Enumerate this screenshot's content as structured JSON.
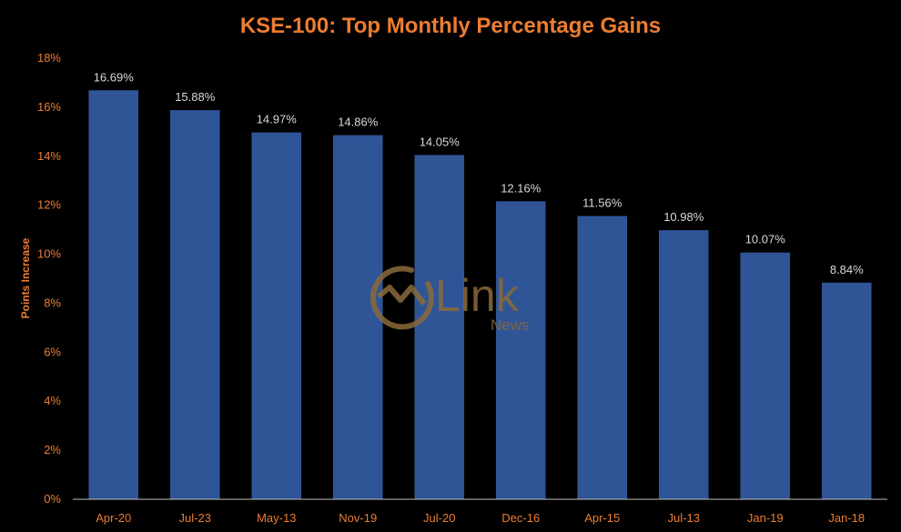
{
  "chart_data": {
    "type": "bar",
    "title": "KSE-100: Top Monthly Percentage Gains",
    "ylabel": "Points Increase",
    "xlabel": "",
    "categories": [
      "Apr-20",
      "Jul-23",
      "May-13",
      "Nov-19",
      "Jul-20",
      "Dec-16",
      "Apr-15",
      "Jul-13",
      "Jan-19",
      "Jan-18"
    ],
    "values": [
      16.69,
      15.88,
      14.97,
      14.86,
      14.05,
      12.16,
      11.56,
      10.98,
      10.07,
      8.84
    ],
    "data_labels": [
      "16.69%",
      "15.88%",
      "14.97%",
      "14.86%",
      "14.05%",
      "12.16%",
      "11.56%",
      "10.98%",
      "10.07%",
      "8.84%"
    ],
    "ylim": [
      0,
      18
    ],
    "yticks": [
      0,
      2,
      4,
      6,
      8,
      10,
      12,
      14,
      16,
      18
    ],
    "ytick_labels": [
      "0%",
      "2%",
      "4%",
      "6%",
      "8%",
      "10%",
      "12%",
      "14%",
      "16%",
      "18%"
    ],
    "grid": false,
    "legend": "none"
  },
  "watermark": {
    "brand": "Link",
    "sub": "News"
  },
  "colors": {
    "background": "#000000",
    "bar": "#2F5597",
    "accent": "#ED7D31",
    "data_label": "#D9D9D9",
    "axis_line": "#BFBFBF",
    "watermark": "#8B6A3A"
  }
}
